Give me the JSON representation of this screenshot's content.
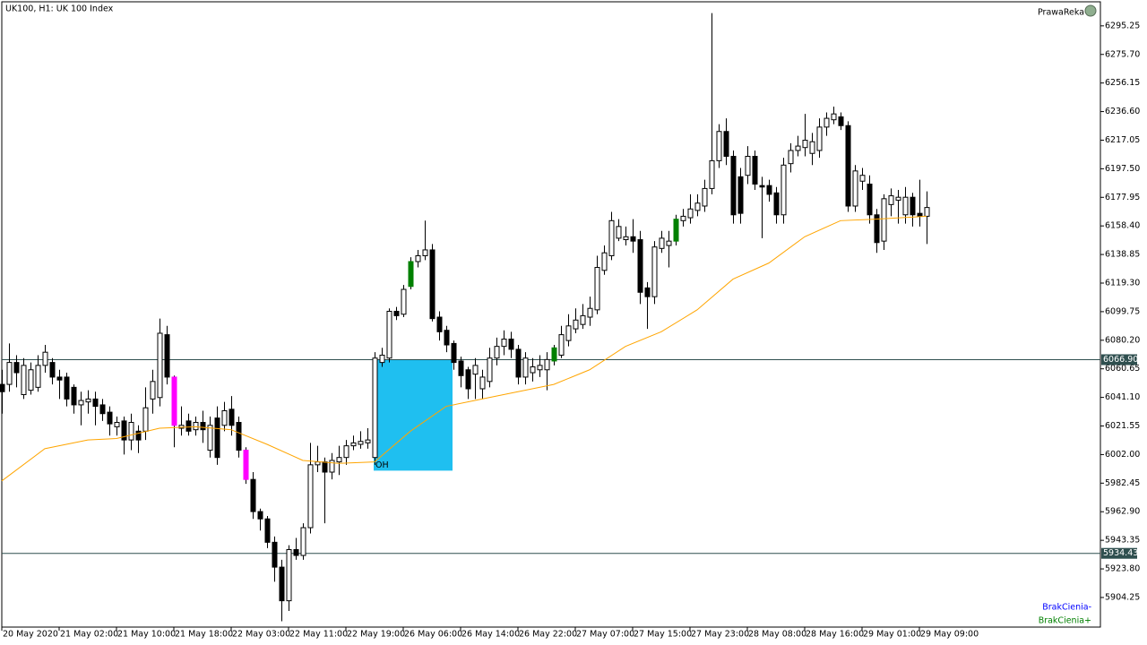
{
  "chart_data": {
    "type": "candlestick",
    "title": "UK100, H1:  UK 100 Index",
    "watermark": "PrawaReka",
    "legend": [
      "BrakCienia-",
      "BrakCienia+"
    ],
    "legend_colors": [
      "#0000ff",
      "#008000"
    ],
    "bull_color": "#ffffff",
    "bear_color": "#000000",
    "outline_color": "#000000",
    "special_colors": [
      {
        "index": 24,
        "color": "#ff00ff"
      },
      {
        "index": 34,
        "color": "#ff00ff"
      },
      {
        "index": 57,
        "color": "#008000"
      },
      {
        "index": 77,
        "color": "#008000"
      },
      {
        "index": 94,
        "color": "#008000"
      }
    ],
    "ylim": [
      5884.0,
      6311.7
    ],
    "yticks": [
      6295.25,
      {
        "value": 6275.7,
        "label": "6275.70"
      },
      6256.15,
      {
        "value": 6236.6,
        "label": "6236.60"
      },
      6217.05,
      {
        "value": 6197.5,
        "label": "6197.50"
      },
      6177.95,
      {
        "value": 6158.4,
        "label": "6158.40"
      },
      6138.85,
      {
        "value": 6119.3,
        "label": "6119.30"
      },
      6099.75,
      {
        "value": 6080.2,
        "label": "6080.20"
      },
      6060.65,
      {
        "value": 6041.1,
        "label": "6041.10"
      },
      6021.55,
      {
        "value": 6002.0,
        "label": "6002.00"
      },
      5982.45,
      {
        "value": 5962.9,
        "label": "5962.90"
      },
      5943.35,
      {
        "value": 5923.8,
        "label": "5923.80"
      },
      5904.25
    ],
    "xticks": [
      {
        "value": 0,
        "label": "20 May 2020"
      },
      {
        "value": 8,
        "label": "21 May 02:00"
      },
      {
        "value": 16,
        "label": "21 May 10:00"
      },
      {
        "value": 24,
        "label": "21 May 18:00"
      },
      {
        "value": 32,
        "label": "22 May 03:00"
      },
      {
        "value": 40,
        "label": "22 May 11:00"
      },
      {
        "value": 48,
        "label": "22 May 19:00"
      },
      {
        "value": 56,
        "label": "26 May 06:00"
      },
      {
        "value": 64,
        "label": "26 May 14:00"
      },
      {
        "value": 72,
        "label": "26 May 22:00"
      },
      {
        "value": 80,
        "label": "27 May 07:00"
      },
      {
        "value": 88,
        "label": "27 May 15:00"
      },
      {
        "value": 96,
        "label": "27 May 23:00"
      },
      {
        "value": 104,
        "label": "28 May 08:00"
      },
      {
        "value": 112,
        "label": "28 May 16:00"
      },
      {
        "value": 120,
        "label": "29 May 01:00"
      },
      {
        "value": 128,
        "label": "29 May 09:00"
      }
    ],
    "candles": [
      [
        6050,
        6060,
        6030,
        6045
      ],
      [
        6050,
        6078,
        6045,
        6065
      ],
      [
        6065,
        6070,
        6048,
        6058
      ],
      [
        6043,
        6068,
        6040,
        6063
      ],
      [
        6046,
        6065,
        6043,
        6060
      ],
      [
        6048,
        6070,
        6045,
        6063
      ],
      [
        6063,
        6077,
        6058,
        6072
      ],
      [
        6065,
        6068,
        6050,
        6055
      ],
      [
        6055,
        6060,
        6040,
        6053
      ],
      [
        6055,
        6058,
        6035,
        6040
      ],
      [
        6048,
        6050,
        6030,
        6036
      ],
      [
        6036,
        6045,
        6022,
        6039
      ],
      [
        6038,
        6046,
        6030,
        6040
      ],
      [
        6040,
        6045,
        6022,
        6035
      ],
      [
        6036,
        6040,
        6025,
        6030
      ],
      [
        6031,
        6035,
        6015,
        6023
      ],
      [
        6021,
        6028,
        6015,
        6024
      ],
      [
        6025,
        6028,
        6002,
        6012
      ],
      [
        6012,
        6030,
        6005,
        6024
      ],
      [
        6018,
        6022,
        6003,
        6012
      ],
      [
        6018,
        6048,
        6012,
        6034
      ],
      [
        6040,
        6060,
        6030,
        6052
      ],
      [
        6041,
        6095,
        6035,
        6085
      ],
      [
        6084,
        6090,
        6050,
        6055
      ],
      [
        6055,
        6056,
        6007,
        6022
      ],
      [
        6020,
        6035,
        6015,
        6022
      ],
      [
        6025,
        6030,
        6015,
        6018
      ],
      [
        6019,
        6028,
        6015,
        6024
      ],
      [
        6024,
        6032,
        6010,
        6019
      ],
      [
        6005,
        6028,
        6000,
        6022
      ],
      [
        6027,
        6035,
        5995,
        6000
      ],
      [
        6022,
        6038,
        6018,
        6032
      ],
      [
        6033,
        6042,
        6015,
        6022
      ],
      [
        6024,
        6028,
        6000,
        6005
      ],
      [
        6005,
        6007,
        5982,
        5985
      ],
      [
        5985,
        5990,
        5958,
        5963
      ],
      [
        5963,
        5965,
        5950,
        5958
      ],
      [
        5958,
        5960,
        5938,
        5942
      ],
      [
        5942,
        5946,
        5915,
        5925
      ],
      [
        5925,
        5930,
        5888,
        5902
      ],
      [
        5902,
        5940,
        5895,
        5937
      ],
      [
        5937,
        5945,
        5930,
        5933
      ],
      [
        5933,
        5955,
        5930,
        5952
      ],
      [
        5952,
        6010,
        5948,
        5995
      ],
      [
        5995,
        6008,
        5990,
        5997
      ],
      [
        5997,
        6000,
        5955,
        5990
      ],
      [
        5990,
        6003,
        5985,
        5998
      ],
      [
        5997,
        6008,
        5988,
        6000
      ],
      [
        6000,
        6012,
        5995,
        6008
      ],
      [
        6008,
        6015,
        6005,
        6010
      ],
      [
        6009,
        6018,
        6006,
        6011
      ],
      [
        6010,
        6020,
        6006,
        6012
      ],
      [
        6000,
        6072,
        5995,
        6068
      ],
      [
        6065,
        6075,
        6062,
        6070
      ],
      [
        6068,
        6102,
        6065,
        6100
      ],
      [
        6100,
        6103,
        6094,
        6097
      ],
      [
        6098,
        6118,
        6096,
        6115
      ],
      [
        6117,
        6137,
        6115,
        6134
      ],
      [
        6134,
        6142,
        6130,
        6138
      ],
      [
        6138,
        6162,
        6135,
        6142
      ],
      [
        6142,
        6146,
        6093,
        6095
      ],
      [
        6096,
        6100,
        6080,
        6086
      ],
      [
        6087,
        6090,
        6072,
        6077
      ],
      [
        6078,
        6080,
        6060,
        6065
      ],
      [
        6066,
        6069,
        6048,
        6056
      ],
      [
        6060,
        6062,
        6040,
        6047
      ],
      [
        6057,
        6068,
        6040,
        6063
      ],
      [
        6047,
        6060,
        6040,
        6055
      ],
      [
        6052,
        6075,
        6048,
        6068
      ],
      [
        6068,
        6082,
        6063,
        6076
      ],
      [
        6076,
        6087,
        6070,
        6081
      ],
      [
        6081,
        6086,
        6068,
        6074
      ],
      [
        6074,
        6077,
        6050,
        6055
      ],
      [
        6055,
        6072,
        6050,
        6068
      ],
      [
        6058,
        6068,
        6052,
        6062
      ],
      [
        6060,
        6070,
        6055,
        6063
      ],
      [
        6060,
        6072,
        6046,
        6067
      ],
      [
        6066,
        6077,
        6063,
        6075
      ],
      [
        6070,
        6090,
        6068,
        6084
      ],
      [
        6080,
        6098,
        6076,
        6090
      ],
      [
        6088,
        6102,
        6085,
        6094
      ],
      [
        6091,
        6105,
        6088,
        6097
      ],
      [
        6096,
        6110,
        6090,
        6102
      ],
      [
        6101,
        6138,
        6098,
        6130
      ],
      [
        6128,
        6145,
        6125,
        6140
      ],
      [
        6138,
        6168,
        6135,
        6162
      ],
      [
        6150,
        6163,
        6148,
        6158
      ],
      [
        6149,
        6158,
        6145,
        6151
      ],
      [
        6151,
        6163,
        6140,
        6148
      ],
      [
        6149,
        6155,
        6105,
        6113
      ],
      [
        6116,
        6120,
        6088,
        6110
      ],
      [
        6110,
        6148,
        6105,
        6144
      ],
      [
        6143,
        6155,
        6140,
        6150
      ],
      [
        6145,
        6155,
        6130,
        6148
      ],
      [
        6148,
        6166,
        6145,
        6163
      ],
      [
        6162,
        6170,
        6158,
        6165
      ],
      [
        6164,
        6180,
        6160,
        6170
      ],
      [
        6169,
        6180,
        6165,
        6174
      ],
      [
        6172,
        6190,
        6168,
        6184
      ],
      [
        6184,
        6304,
        6180,
        6203
      ],
      [
        6203,
        6228,
        6198,
        6223
      ],
      [
        6223,
        6232,
        6200,
        6206
      ],
      [
        6206,
        6210,
        6160,
        6166
      ],
      [
        6192,
        6198,
        6160,
        6167
      ],
      [
        6193,
        6213,
        6187,
        6206
      ],
      [
        6206,
        6210,
        6183,
        6187
      ],
      [
        6186,
        6192,
        6150,
        6185
      ],
      [
        6186,
        6190,
        6175,
        6180
      ],
      [
        6181,
        6185,
        6160,
        6166
      ],
      [
        6166,
        6205,
        6160,
        6200
      ],
      [
        6201,
        6215,
        6195,
        6210
      ],
      [
        6210,
        6220,
        6206,
        6213
      ],
      [
        6212,
        6235,
        6206,
        6217
      ],
      [
        6208,
        6222,
        6200,
        6216
      ],
      [
        6210,
        6232,
        6205,
        6226
      ],
      [
        6226,
        6236,
        6220,
        6232
      ],
      [
        6231,
        6240,
        6228,
        6235
      ],
      [
        6233,
        6236,
        6224,
        6227
      ],
      [
        6227,
        6230,
        6168,
        6172
      ],
      [
        6172,
        6200,
        6168,
        6196
      ],
      [
        6189,
        6198,
        6183,
        6193
      ],
      [
        6187,
        6193,
        6160,
        6166
      ],
      [
        6166,
        6170,
        6140,
        6147
      ],
      [
        6148,
        6180,
        6142,
        6177
      ],
      [
        6173,
        6184,
        6165,
        6179
      ],
      [
        6176,
        6183,
        6160,
        6178
      ],
      [
        6166,
        6185,
        6160,
        6178
      ],
      [
        6178,
        6181,
        6158,
        6166
      ],
      [
        6167,
        6190,
        6158,
        6165
      ],
      [
        6165,
        6182,
        6146,
        6171
      ]
    ],
    "ma": {
      "color": "#ffa500",
      "x": [
        0,
        6,
        12,
        16,
        22,
        27,
        32,
        37,
        42,
        47,
        52,
        57,
        62,
        67,
        72,
        77,
        82,
        87,
        92,
        97,
        102,
        107,
        112,
        117,
        122,
        129
      ],
      "values": [
        5984,
        6006,
        6012,
        6013,
        6020,
        6021,
        6019,
        6009,
        5998,
        5996,
        5997,
        6018,
        6035,
        6040,
        6045,
        6050,
        6060,
        6076,
        6086,
        6101,
        6122,
        6133,
        6151,
        6162,
        6163,
        6165
      ]
    },
    "hlines": [
      {
        "value": 6066.9,
        "label": "6066.90"
      },
      {
        "value": 5934.43,
        "label": "5934.43"
      }
    ],
    "hline_color": "#2f4f4f",
    "zone": {
      "x": [
        52,
        63
      ],
      "y": [
        5991,
        6066.9
      ],
      "color": "#1fbff0",
      "label": "OH"
    }
  }
}
